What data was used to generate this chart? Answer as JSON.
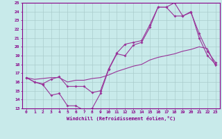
{
  "xlabel": "Windchill (Refroidissement éolien,°C)",
  "ylim": [
    13,
    25
  ],
  "xlim": [
    -0.5,
    23.5
  ],
  "yticks": [
    13,
    14,
    15,
    16,
    17,
    18,
    19,
    20,
    21,
    22,
    23,
    24,
    25
  ],
  "xticks": [
    0,
    1,
    2,
    3,
    4,
    5,
    6,
    7,
    8,
    9,
    10,
    11,
    12,
    13,
    14,
    15,
    16,
    17,
    18,
    19,
    20,
    21,
    22,
    23
  ],
  "bg_color": "#c8eaea",
  "grid_color": "#aacccc",
  "line_color": "#993399",
  "line1_y": [
    16.5,
    16.0,
    15.7,
    14.5,
    14.7,
    13.3,
    13.3,
    12.8,
    13.0,
    14.7,
    17.4,
    19.2,
    19.0,
    20.2,
    20.5,
    22.2,
    24.5,
    24.5,
    25.0,
    23.5,
    24.0,
    21.0,
    19.0,
    18.0
  ],
  "line2_y": [
    16.5,
    16.0,
    15.8,
    16.3,
    16.6,
    15.5,
    15.5,
    15.5,
    14.8,
    15.0,
    17.5,
    19.3,
    20.3,
    20.5,
    20.7,
    22.5,
    24.5,
    24.5,
    23.5,
    23.5,
    23.9,
    21.5,
    19.5,
    18.2
  ],
  "line3_y": [
    16.5,
    16.3,
    16.4,
    16.5,
    16.5,
    16.0,
    16.2,
    16.2,
    16.4,
    16.5,
    16.8,
    17.2,
    17.5,
    17.8,
    18.0,
    18.5,
    18.8,
    19.0,
    19.2,
    19.5,
    19.7,
    20.0,
    19.8,
    17.8
  ]
}
